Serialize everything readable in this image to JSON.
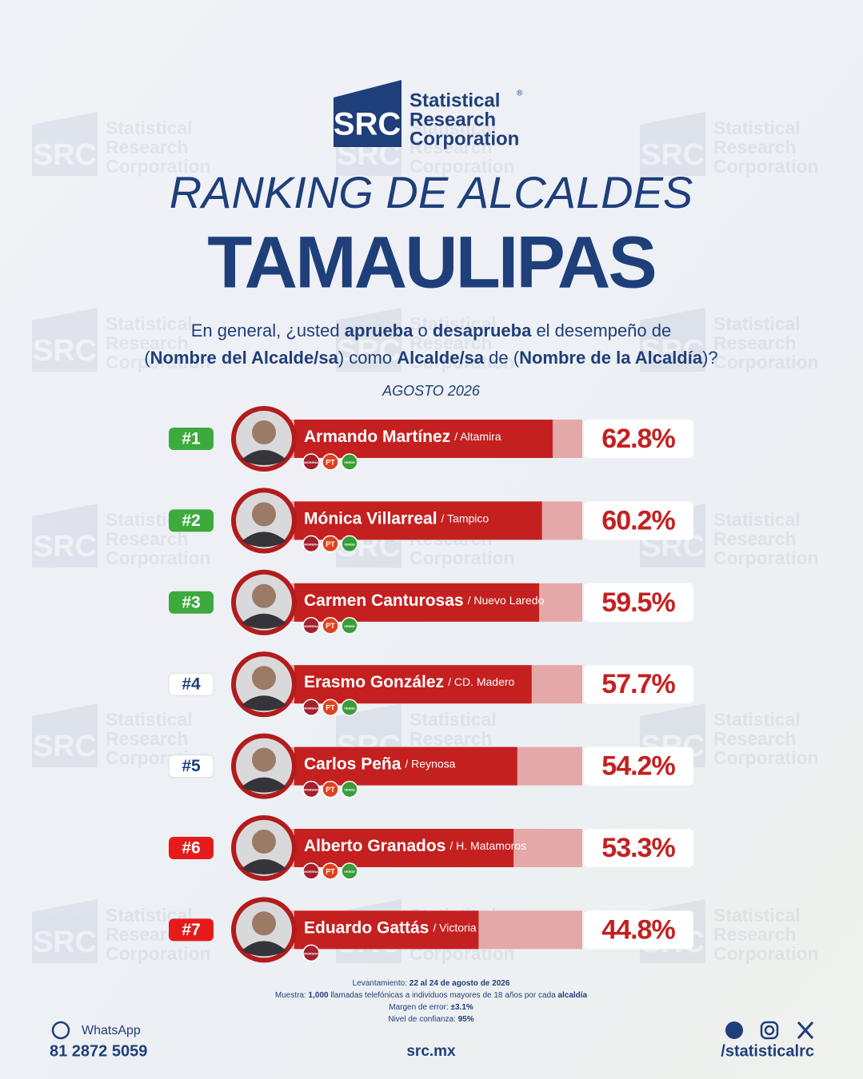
{
  "logo": {
    "mark": "SRC",
    "lines": [
      "Statistical",
      "Research",
      "Corporation"
    ],
    "registered": "®"
  },
  "chart_data": {
    "type": "bar",
    "orientation": "horizontal",
    "title": "RANKING DE ALCALDES",
    "subtitle": "TAMAULIPAS",
    "question": [
      [
        {
          "text": "En general, ¿usted ",
          "bold": false
        },
        {
          "text": "aprueba",
          "bold": true
        },
        {
          "text": " o ",
          "bold": false
        },
        {
          "text": "desaprueba",
          "bold": true
        },
        {
          "text": " el desempeño de",
          "bold": false
        }
      ],
      [
        {
          "text": "(",
          "bold": false
        },
        {
          "text": "Nombre del Alcalde/sa",
          "bold": true
        },
        {
          "text": ") como ",
          "bold": false
        },
        {
          "text": "Alcalde/sa",
          "bold": true
        },
        {
          "text": " de (",
          "bold": false
        },
        {
          "text": "Nombre de la Alcaldía",
          "bold": true
        },
        {
          "text": ")?",
          "bold": false
        }
      ]
    ],
    "date": "AGOSTO 2026",
    "ranks": [
      "#1",
      "#2",
      "#3",
      "#4",
      "#5",
      "#6",
      "#7"
    ],
    "rank_colors": [
      "#3daa3d",
      "#3daa3d",
      "#3daa3d",
      "#ffffff",
      "#ffffff",
      "#e51b1b",
      "#e51b1b"
    ],
    "categories": [
      "Armando Martínez",
      "Mónica Villarreal",
      "Carmen Canturosas",
      "Erasmo González",
      "Carlos Peña",
      "Alberto Granados",
      "Eduardo Gattás"
    ],
    "places": [
      "/ Altamira",
      "/ Tampico",
      "/ Nuevo Laredo",
      "/ CD. Madero",
      "/ Reynosa",
      "/ H. Matamoros",
      "/ Victoria"
    ],
    "parties": [
      [
        "MORENA",
        "PT",
        "VERDE"
      ],
      [
        "MORENA",
        "PT",
        "VERDE"
      ],
      [
        "MORENA",
        "PT",
        "VERDE"
      ],
      [
        "MORENA",
        "PT",
        "VERDE"
      ],
      [
        "MORENA",
        "PT",
        "VERDE"
      ],
      [
        "MORENA",
        "PT",
        "VERDE"
      ],
      [
        "MORENA"
      ]
    ],
    "values": [
      62.8,
      60.2,
      59.5,
      57.7,
      54.2,
      53.3,
      44.8
    ],
    "value_labels": [
      "62.8%",
      "60.2%",
      "59.5%",
      "57.7%",
      "54.2%",
      "53.3%",
      "44.8%"
    ],
    "color": "#c42020",
    "track_color": "#e4a8a8",
    "xlim": [
      0,
      70
    ]
  },
  "footer": {
    "notes": [
      [
        {
          "text": "Levantamiento: ",
          "bold": false
        },
        {
          "text": "22 al 24 de agosto de 2026",
          "bold": true
        }
      ],
      [
        {
          "text": "Muestra: ",
          "bold": false
        },
        {
          "text": "1,000",
          "bold": true
        },
        {
          "text": " llamadas telefónicas a individuos mayores de 18 años por cada ",
          "bold": false
        },
        {
          "text": "alcaldía",
          "bold": true
        }
      ],
      [
        {
          "text": "Margen de error: ",
          "bold": false
        },
        {
          "text": "±3.1%",
          "bold": true
        }
      ],
      [
        {
          "text": "Nivel de confianza: ",
          "bold": false
        },
        {
          "text": "95%",
          "bold": true
        }
      ]
    ],
    "whatsapp_label": "WhatsApp",
    "phone": "81 2872 5059",
    "website": "src.mx",
    "handle": "/statisticalrc"
  }
}
